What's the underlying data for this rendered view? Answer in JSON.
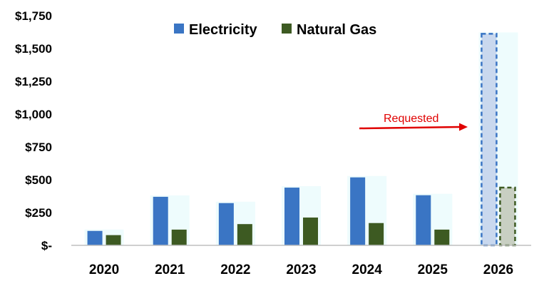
{
  "chart_data": {
    "type": "bar",
    "categories": [
      "2020",
      "2021",
      "2022",
      "2023",
      "2024",
      "2025",
      "2026"
    ],
    "series": [
      {
        "name": "Electricity",
        "values": [
          110,
          370,
          322,
          440,
          518,
          382,
          1612
        ],
        "color": "#3a75c4",
        "requested": [
          false,
          false,
          false,
          false,
          false,
          false,
          true
        ]
      },
      {
        "name": "Natural Gas",
        "values": [
          78,
          120,
          162,
          212,
          170,
          120,
          440
        ],
        "color": "#3d5a22",
        "requested": [
          false,
          false,
          false,
          false,
          false,
          false,
          true
        ]
      }
    ],
    "yticks": [
      "$-",
      "$250",
      "$500",
      "$750",
      "$1,000",
      "$1,250",
      "$1,500",
      "$1,750"
    ],
    "ytick_values": [
      0,
      250,
      500,
      750,
      1000,
      1250,
      1500,
      1750
    ],
    "ylim": [
      0,
      1750
    ],
    "legend_position": "top-center",
    "annotation": {
      "text": "Requested",
      "color": "#e00000",
      "target_category": "2026"
    },
    "requested_colors": {
      "Electricity": "#c9d8ee",
      "Natural Gas": "#c8cfc2"
    },
    "title": "",
    "xlabel": "",
    "ylabel": ""
  }
}
